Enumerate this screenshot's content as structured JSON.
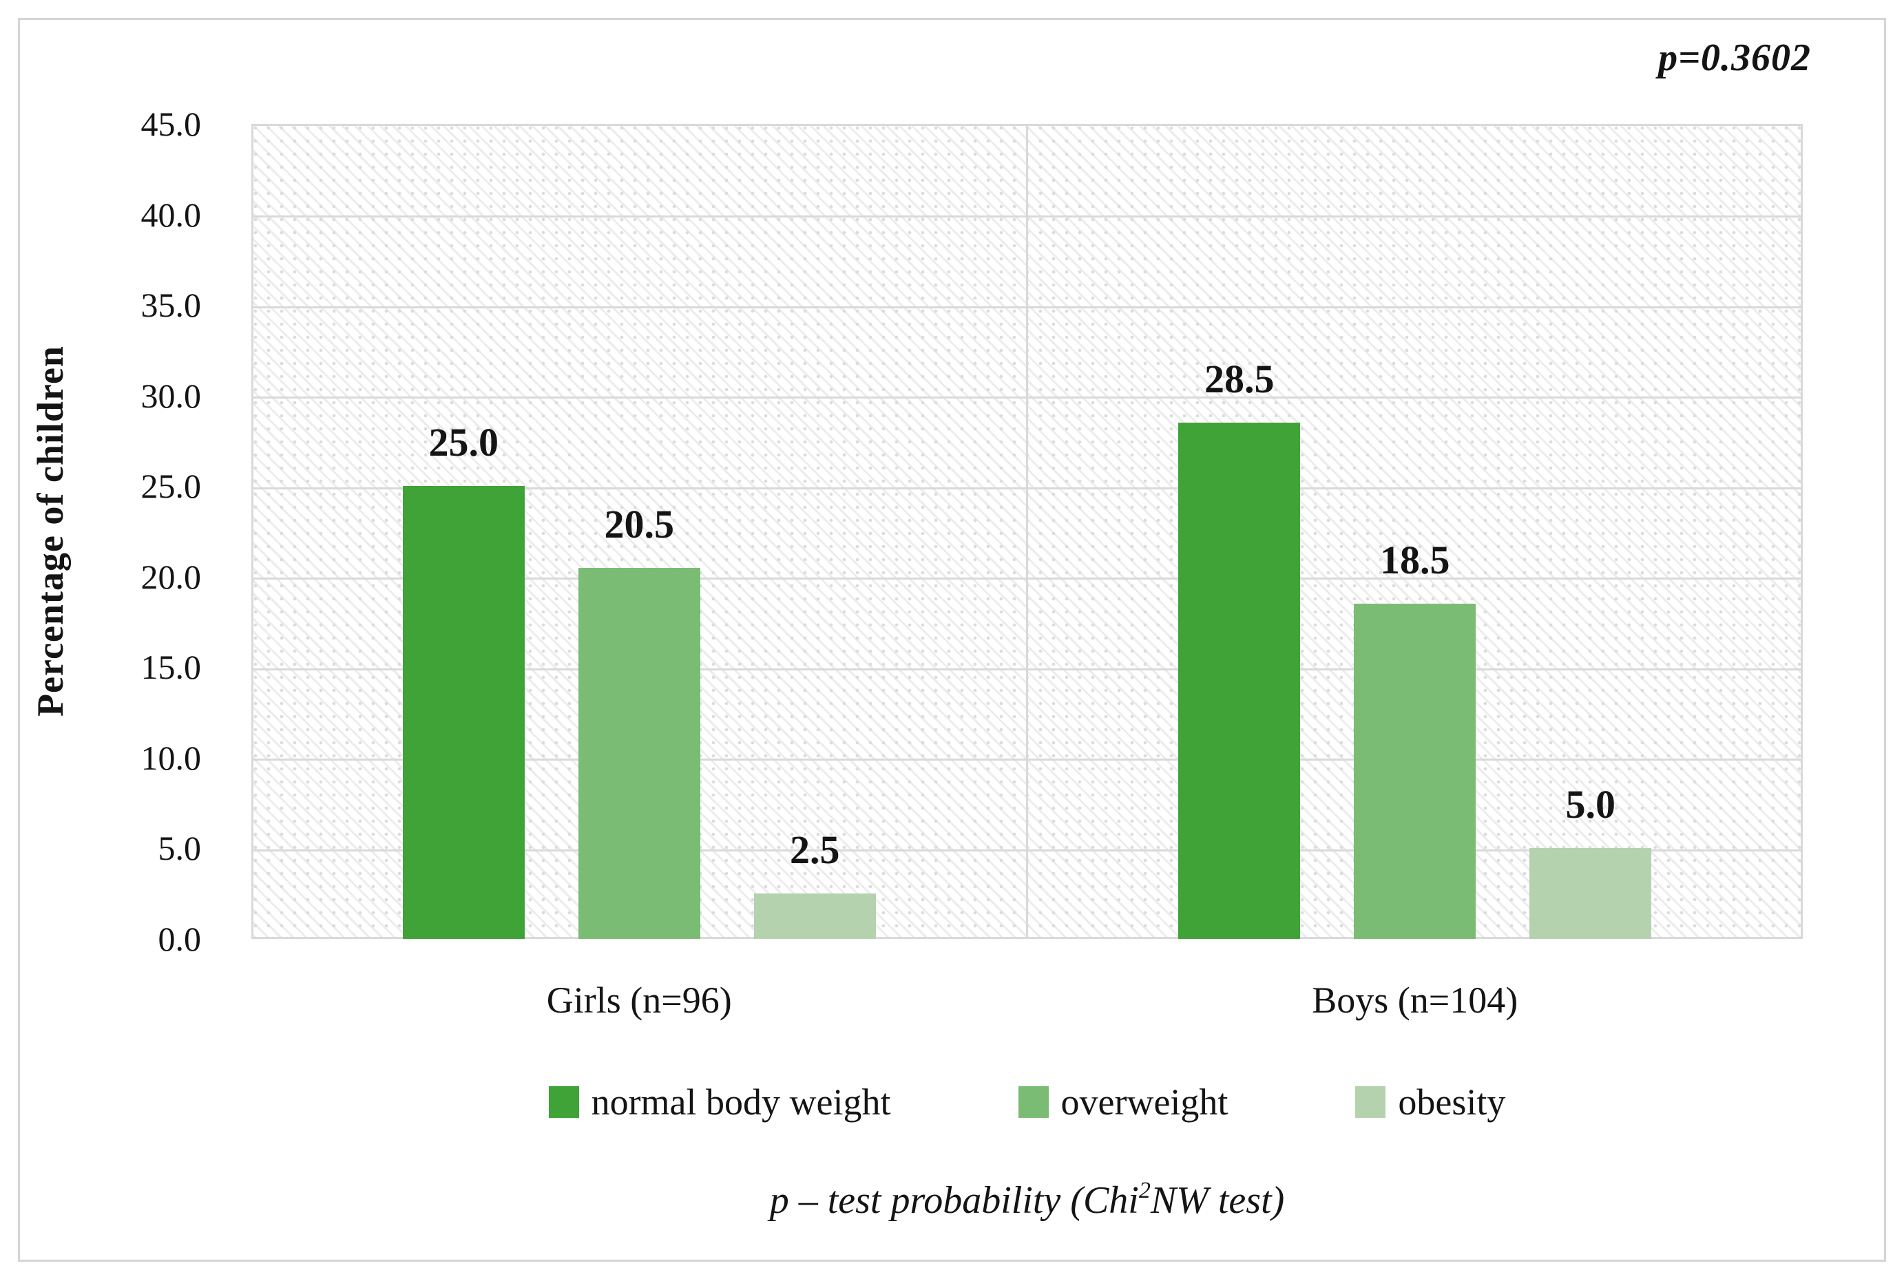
{
  "chart_data": {
    "type": "bar",
    "title": "",
    "annotation": "p=0.3602",
    "ylabel": "Percentage of children",
    "categories": [
      "Girls (n=96)",
      "Boys (n=104)"
    ],
    "series": [
      {
        "name": "normal body weight",
        "color": "#3FA337",
        "values": [
          25.0,
          28.5
        ],
        "labels": [
          "25.0",
          "28.5"
        ]
      },
      {
        "name": "overweight",
        "color": "#7BBC74",
        "values": [
          20.5,
          18.5
        ],
        "labels": [
          "20.5",
          "18.5"
        ]
      },
      {
        "name": "obesity",
        "color": "#B5D2AE",
        "values": [
          2.5,
          5.0
        ],
        "labels": [
          "2.5",
          "5.0"
        ]
      }
    ],
    "ylim": [
      0,
      45
    ],
    "ytick_step": 5,
    "ytick_labels": [
      "0.0",
      "5.0",
      "10.0",
      "15.0",
      "20.0",
      "25.0",
      "30.0",
      "35.0",
      "40.0",
      "45.0"
    ],
    "grid": true,
    "legend_position": "bottom",
    "caption": {
      "prefix": "p – test probability (Chi",
      "sup": "2",
      "suffix": "NW test)"
    },
    "colors": {
      "gridline": "#d9d9d9",
      "frame": "#d5d5d5",
      "text": "#141414"
    }
  }
}
